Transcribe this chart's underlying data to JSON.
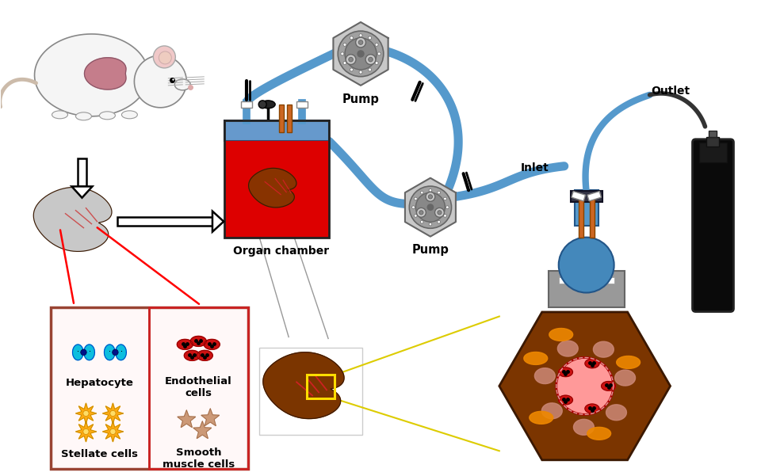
{
  "background_color": "#ffffff",
  "labels": {
    "pump_top": "Pump",
    "pump_mid": "Pump",
    "organ_chamber": "Organ chamber",
    "inlet": "Inlet",
    "outlet": "Outlet",
    "hepatocyte": "Hepatocyte",
    "stellate": "Stellate cells",
    "endothelial": "Endothelial\ncells",
    "smooth_muscle": "Smooth\nmuscle cells"
  },
  "colors": {
    "tube_blue": "#5599cc",
    "tube_blue2": "#3377aa",
    "organ_chamber_red": "#dd0000",
    "organ_chamber_blue": "#6699cc",
    "liver_brown": "#7b3500",
    "liver_red": "#993322",
    "pump_gray1": "#c8c8c8",
    "pump_gray2": "#a0a0a0",
    "pump_gray3": "#888888",
    "pump_dark": "#666666",
    "apparatus_blue": "#4488bb",
    "apparatus_blue2": "#5599cc",
    "apparatus_gray": "#999999",
    "apparatus_gray2": "#aaaaaa",
    "apparatus_dark": "#333344",
    "apparatus_orange": "#cc6622",
    "gas_black": "#111111",
    "gas_dark": "#222222",
    "hepatocyte_blue": "#1144cc",
    "hepatocyte_cyan": "#22ccdd",
    "endothelial_red": "#cc1111",
    "stellate_gold": "#ffaa11",
    "smooth_muscle_pink": "#cc8866",
    "box_brown": "#994433",
    "box_red": "#cc2222",
    "arrow_white": "#ffffff",
    "mouse_body": "#f5f5f5",
    "mouse_gray": "#cccccc",
    "mouse_ear": "#f0c8c8",
    "mouse_liver": "#c07080",
    "liver_outline": "#555500",
    "hexbg": "#7b3500",
    "hex_cell_blue": "#0044cc",
    "hex_cell_cyan": "#00bbdd",
    "hex_vessel_pink": "#ff9999",
    "hex_salmon": "#cc8877",
    "hex_orange": "#ee8800"
  },
  "figsize": [
    9.6,
    6.01
  ],
  "dpi": 100
}
